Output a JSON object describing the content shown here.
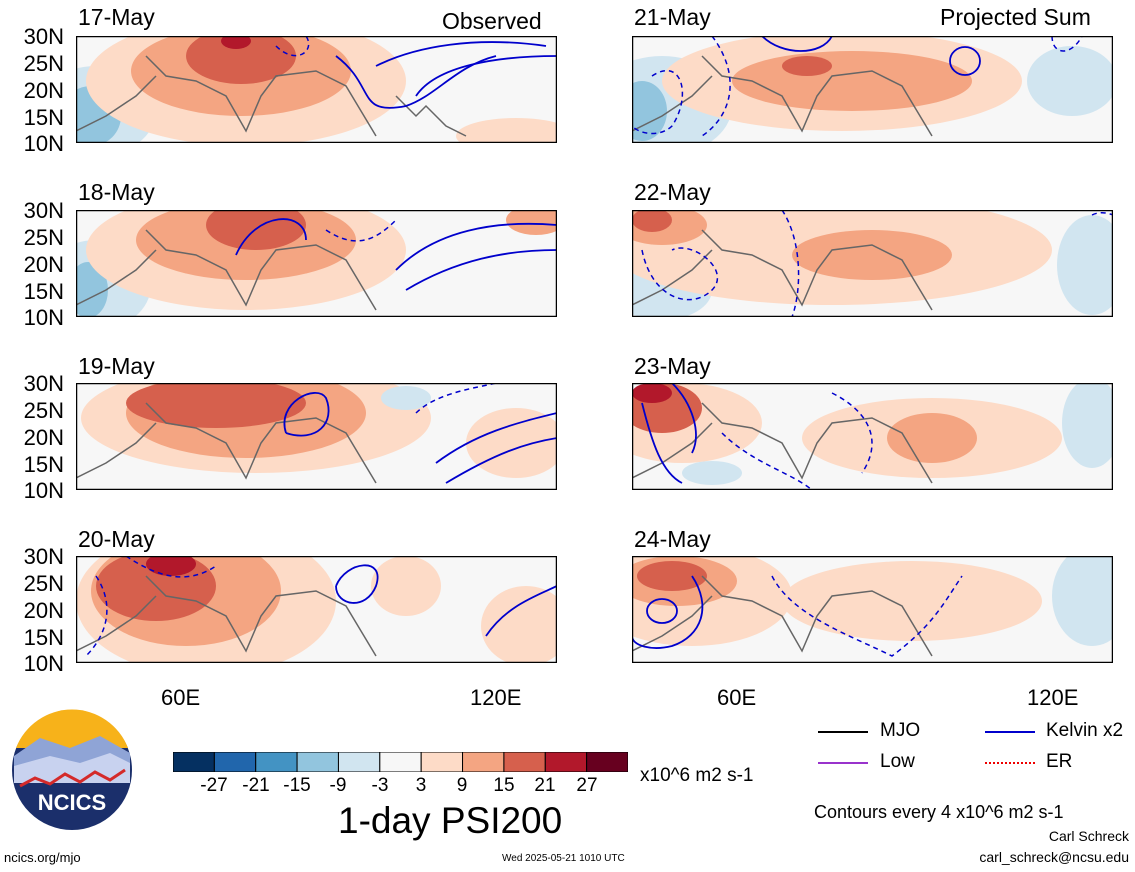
{
  "column_headers": {
    "left": "Observed",
    "right": "Projected Sum"
  },
  "panels": [
    {
      "date": "17-May",
      "column": "left"
    },
    {
      "date": "18-May",
      "column": "left"
    },
    {
      "date": "19-May",
      "column": "left"
    },
    {
      "date": "20-May",
      "column": "left"
    },
    {
      "date": "21-May",
      "column": "right"
    },
    {
      "date": "22-May",
      "column": "right"
    },
    {
      "date": "23-May",
      "column": "right"
    },
    {
      "date": "24-May",
      "column": "right"
    }
  ],
  "lat_labels": [
    "30N",
    "25N",
    "20N",
    "15N",
    "10N"
  ],
  "lon_labels": [
    "60E",
    "120E"
  ],
  "colorbar": {
    "tick_labels": [
      "-27",
      "-21",
      "-15",
      "-9",
      "-3",
      "3",
      "9",
      "15",
      "21",
      "27"
    ],
    "colors": [
      "#053061",
      "#2166ac",
      "#4393c3",
      "#92c5de",
      "#d1e5f0",
      "#f7f7f7",
      "#fddbc7",
      "#f4a582",
      "#d6604d",
      "#b2182b",
      "#67001f"
    ],
    "units": "x10^6 m2 s-1"
  },
  "title": "1-day PSI200",
  "legend": [
    {
      "label": "MJO",
      "color": "#000000"
    },
    {
      "label": "Kelvin x2",
      "color": "#0000cc"
    },
    {
      "label": "Low",
      "color": "#9933cc"
    },
    {
      "label": "ER",
      "color": "#ee0000"
    }
  ],
  "contour_note": "Contours every 4 x10^6 m2 s-1",
  "author": "Carl Schreck",
  "email": "carl_schreck@ncsu.edu",
  "site": "ncics.org/mjo",
  "timestamp": "Wed 2025-05-21 1010 UTC",
  "logo_text": "NCICS"
}
